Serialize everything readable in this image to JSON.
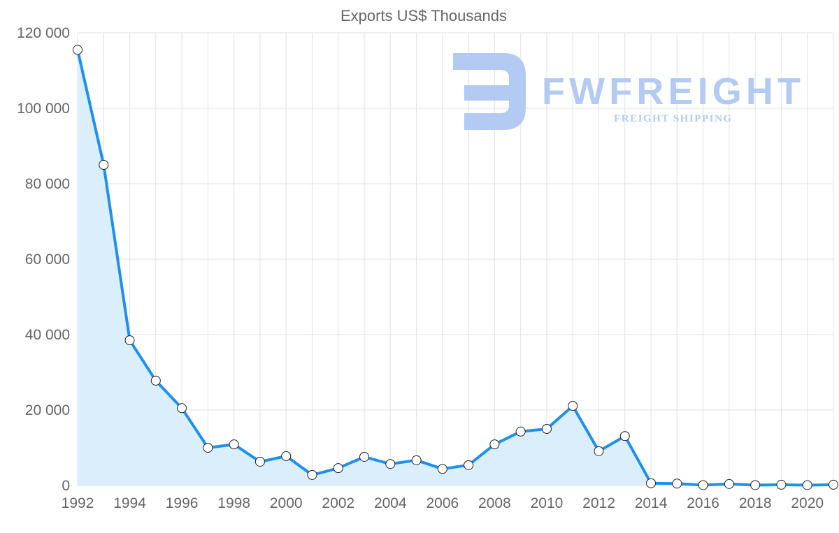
{
  "chart_data": {
    "type": "line",
    "title": "Exports US$ Thousands",
    "xlabel": "",
    "ylabel": "",
    "ylim": [
      0,
      120000
    ],
    "xlim": [
      1992,
      2021
    ],
    "grid": true,
    "y_ticks": [
      "0",
      "20 000",
      "40 000",
      "60 000",
      "80 000",
      "100 000",
      "120 000"
    ],
    "y_tick_values": [
      0,
      20000,
      40000,
      60000,
      80000,
      100000,
      120000
    ],
    "x_ticks": [
      "1992",
      "1994",
      "1996",
      "1998",
      "2000",
      "2002",
      "2004",
      "2006",
      "2008",
      "2010",
      "2012",
      "2014",
      "2016",
      "2018",
      "2020"
    ],
    "x": [
      1992,
      1993,
      1994,
      1995,
      1996,
      1997,
      1998,
      1999,
      2000,
      2001,
      2002,
      2003,
      2004,
      2005,
      2006,
      2007,
      2008,
      2009,
      2010,
      2011,
      2012,
      2013,
      2014,
      2015,
      2016,
      2017,
      2018,
      2019,
      2020,
      2021
    ],
    "series": [
      {
        "name": "Exports US$ Thousands",
        "values": [
          115500,
          85000,
          38500,
          27800,
          20500,
          10000,
          10900,
          6300,
          7800,
          2800,
          4600,
          7600,
          5700,
          6700,
          4400,
          5400,
          10900,
          14300,
          15000,
          21100,
          9100,
          13100,
          600,
          500,
          100,
          400,
          100,
          200,
          100,
          200
        ],
        "color": "#1e90f0",
        "fill": "#dbeefc"
      }
    ]
  },
  "watermark": {
    "brand": "FWFREIGHT",
    "tagline": "FREIGHT SHIPPING",
    "color": "#b3cbf3"
  }
}
